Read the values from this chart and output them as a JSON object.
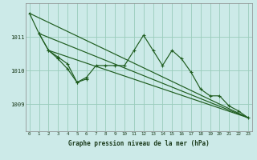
{
  "bg_color": "#cceae8",
  "grid_color": "#99ccbb",
  "line_color": "#1e5c1e",
  "xlabel": "Graphe pression niveau de la mer (hPa)",
  "hours": [
    0,
    1,
    2,
    3,
    4,
    5,
    6,
    7,
    8,
    9,
    10,
    11,
    12,
    13,
    14,
    15,
    16,
    17,
    18,
    19,
    20,
    21,
    22,
    23
  ],
  "main_series": [
    1011.7,
    1011.1,
    1010.6,
    1010.4,
    1010.2,
    1009.65,
    1009.8,
    1010.15,
    1010.15,
    1010.15,
    1010.15,
    1010.6,
    1011.05,
    1010.6,
    1010.15,
    1010.6,
    1010.35,
    1009.95,
    1009.45,
    1009.25,
    1009.25,
    1008.95,
    1008.8,
    1008.6
  ],
  "short_series_x": [
    1,
    2,
    3,
    4,
    5,
    6
  ],
  "short_series_y": [
    1011.1,
    1010.6,
    1010.35,
    1010.05,
    1009.65,
    1009.75
  ],
  "trend1_x": [
    0,
    23
  ],
  "trend1_y": [
    1011.7,
    1008.6
  ],
  "trend2_x": [
    1,
    23
  ],
  "trend2_y": [
    1011.1,
    1008.6
  ],
  "trend3_x": [
    2,
    23
  ],
  "trend3_y": [
    1010.6,
    1008.6
  ],
  "yticks": [
    1009,
    1010,
    1011
  ],
  "ylim": [
    1008.2,
    1012.0
  ],
  "xlim": [
    -0.4,
    23.4
  ]
}
